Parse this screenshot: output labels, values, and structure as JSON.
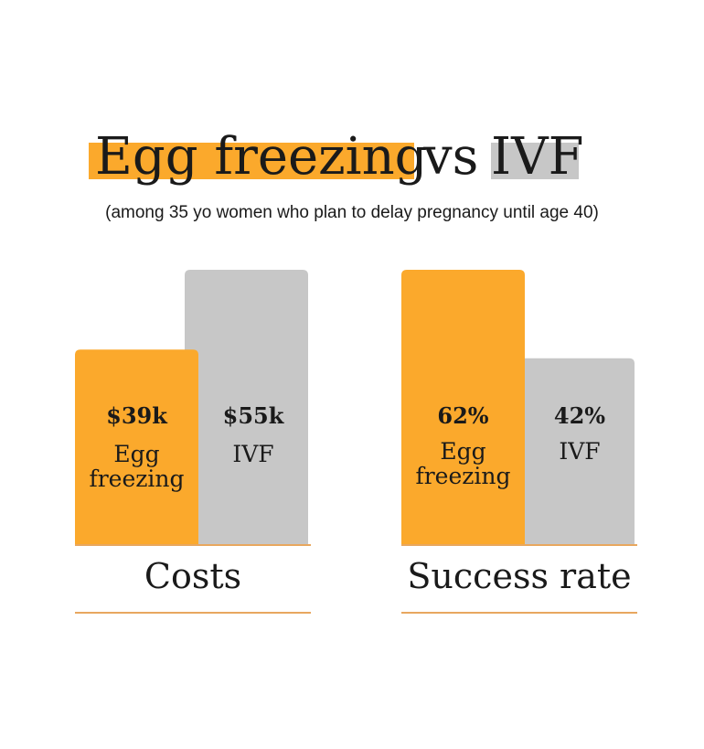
{
  "title": {
    "part1": "Egg freezing",
    "part2": "vs",
    "part3": "IVF"
  },
  "subtitle": "(among 35 yo women who plan to delay pregnancy until age 40)",
  "colors": {
    "egg_freezing": "#FBA92C",
    "ivf": "#C7C7C7",
    "baseline": "#E08A2A",
    "text": "#1a1a1a"
  },
  "chart_data": [
    {
      "type": "bar",
      "title": "Costs",
      "categories": [
        "Egg freezing",
        "IVF"
      ],
      "values": [
        39,
        55
      ],
      "value_labels": [
        "$39k",
        "$55k"
      ],
      "unit": "thousand USD",
      "ylim": [
        0,
        55
      ],
      "grid": false
    },
    {
      "type": "bar",
      "title": "Success rate",
      "categories": [
        "Egg freezing",
        "IVF"
      ],
      "values": [
        62,
        42
      ],
      "value_labels": [
        "62%",
        "42%"
      ],
      "unit": "percent",
      "ylim": [
        0,
        62
      ],
      "grid": false
    }
  ]
}
